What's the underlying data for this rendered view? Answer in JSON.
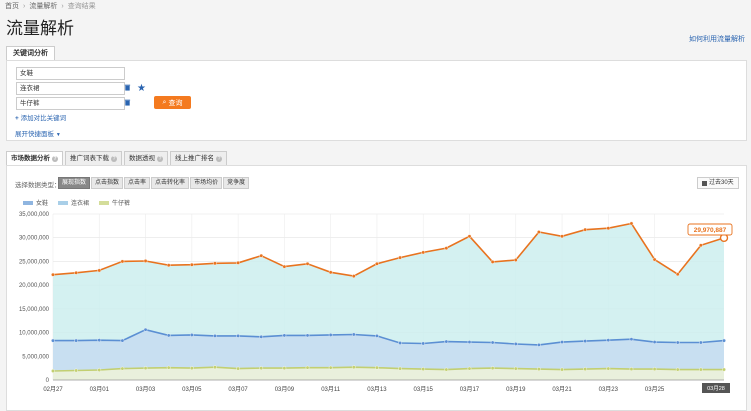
{
  "breadcrumb": [
    "首页",
    "流量解析",
    "查询结果"
  ],
  "page_title": "流量解析",
  "help_link": "如何利用流量解析",
  "top_tab": "关键词分析",
  "keywords": [
    {
      "value": "女鞋"
    },
    {
      "value": "连衣裙"
    },
    {
      "value": "牛仔裤"
    }
  ],
  "query_button": "查询",
  "add_compare": "添加对比关键词",
  "expand_panel": "展开快捷面板",
  "tabs": [
    {
      "label": "市场数据分析",
      "active": true
    },
    {
      "label": "推广词表下载",
      "active": false
    },
    {
      "label": "数据透视",
      "active": false
    },
    {
      "label": "线上推广排名",
      "active": false
    }
  ],
  "data_type_label": "选择数据类型：",
  "data_types": [
    {
      "label": "展现指数",
      "active": true
    },
    {
      "label": "点击指数",
      "active": false
    },
    {
      "label": "点击率",
      "active": false
    },
    {
      "label": "点击转化率",
      "active": false
    },
    {
      "label": "市场均价",
      "active": false
    },
    {
      "label": "竞争度",
      "active": false
    }
  ],
  "range_button": "过去30天",
  "colors": {
    "orange": "#e8731f",
    "blue": "#5b8fd3",
    "green": "#c2cf71",
    "teal_fill": "#cdeeee",
    "blue_fill": "#c6dcf1",
    "green_fill": "#eef3d8"
  },
  "chart_data": {
    "type": "area",
    "x": [
      "02月27",
      "02月28",
      "03月01",
      "03月02",
      "03月03",
      "03月04",
      "03月05",
      "03月06",
      "03月07",
      "03月08",
      "03月09",
      "03月10",
      "03月11",
      "03月12",
      "03月13",
      "03月14",
      "03月15",
      "03月16",
      "03月17",
      "03月18",
      "03月19",
      "03月20",
      "03月21",
      "03月22",
      "03月23",
      "03月24",
      "03月25",
      "03月26",
      "03月27",
      "03月28"
    ],
    "x_tick_labels": [
      "02月27",
      "03月01",
      "03月03",
      "03月05",
      "03月07",
      "03月09",
      "03月11",
      "03月13",
      "03月15",
      "03月17",
      "03月19",
      "03月21",
      "03月23",
      "03月25"
    ],
    "last_label": "03月28",
    "ylim": [
      0,
      35000000
    ],
    "y_ticks": [
      "0",
      "5,000,000",
      "10,000,000",
      "15,000,000",
      "20,000,000",
      "25,000,000",
      "30,000,000",
      "35,000,000"
    ],
    "grid": true,
    "legend_position": "top-left",
    "tooltip_value": "29,970,887",
    "series": [
      {
        "name": "女鞋",
        "color": "#e8731f",
        "fill": "#cdeeee",
        "values": [
          22200000,
          22600000,
          23100000,
          25000000,
          25100000,
          24200000,
          24300000,
          24600000,
          24700000,
          26200000,
          23900000,
          24500000,
          22700000,
          21900000,
          24500000,
          25800000,
          26900000,
          27800000,
          30300000,
          24900000,
          25300000,
          31200000,
          30300000,
          31700000,
          32000000,
          33000000,
          25400000,
          22300000,
          28400000,
          29970887
        ]
      },
      {
        "name": "连衣裙",
        "color": "#5b8fd3",
        "fill": "#c6dcf1",
        "values": [
          8300000,
          8300000,
          8400000,
          8300000,
          10600000,
          9400000,
          9500000,
          9300000,
          9300000,
          9100000,
          9400000,
          9400000,
          9500000,
          9600000,
          9300000,
          7800000,
          7700000,
          8100000,
          8000000,
          7900000,
          7600000,
          7400000,
          8000000,
          8200000,
          8400000,
          8600000,
          8000000,
          7900000,
          7900000,
          8300000
        ]
      },
      {
        "name": "牛仔裤",
        "color": "#c2cf71",
        "fill": "#eef3d8",
        "values": [
          1900000,
          2000000,
          2100000,
          2400000,
          2500000,
          2600000,
          2500000,
          2700000,
          2400000,
          2500000,
          2500000,
          2600000,
          2600000,
          2700000,
          2600000,
          2400000,
          2300000,
          2200000,
          2400000,
          2500000,
          2400000,
          2300000,
          2200000,
          2300000,
          2400000,
          2300000,
          2300000,
          2200000,
          2200000,
          2200000
        ]
      }
    ]
  }
}
